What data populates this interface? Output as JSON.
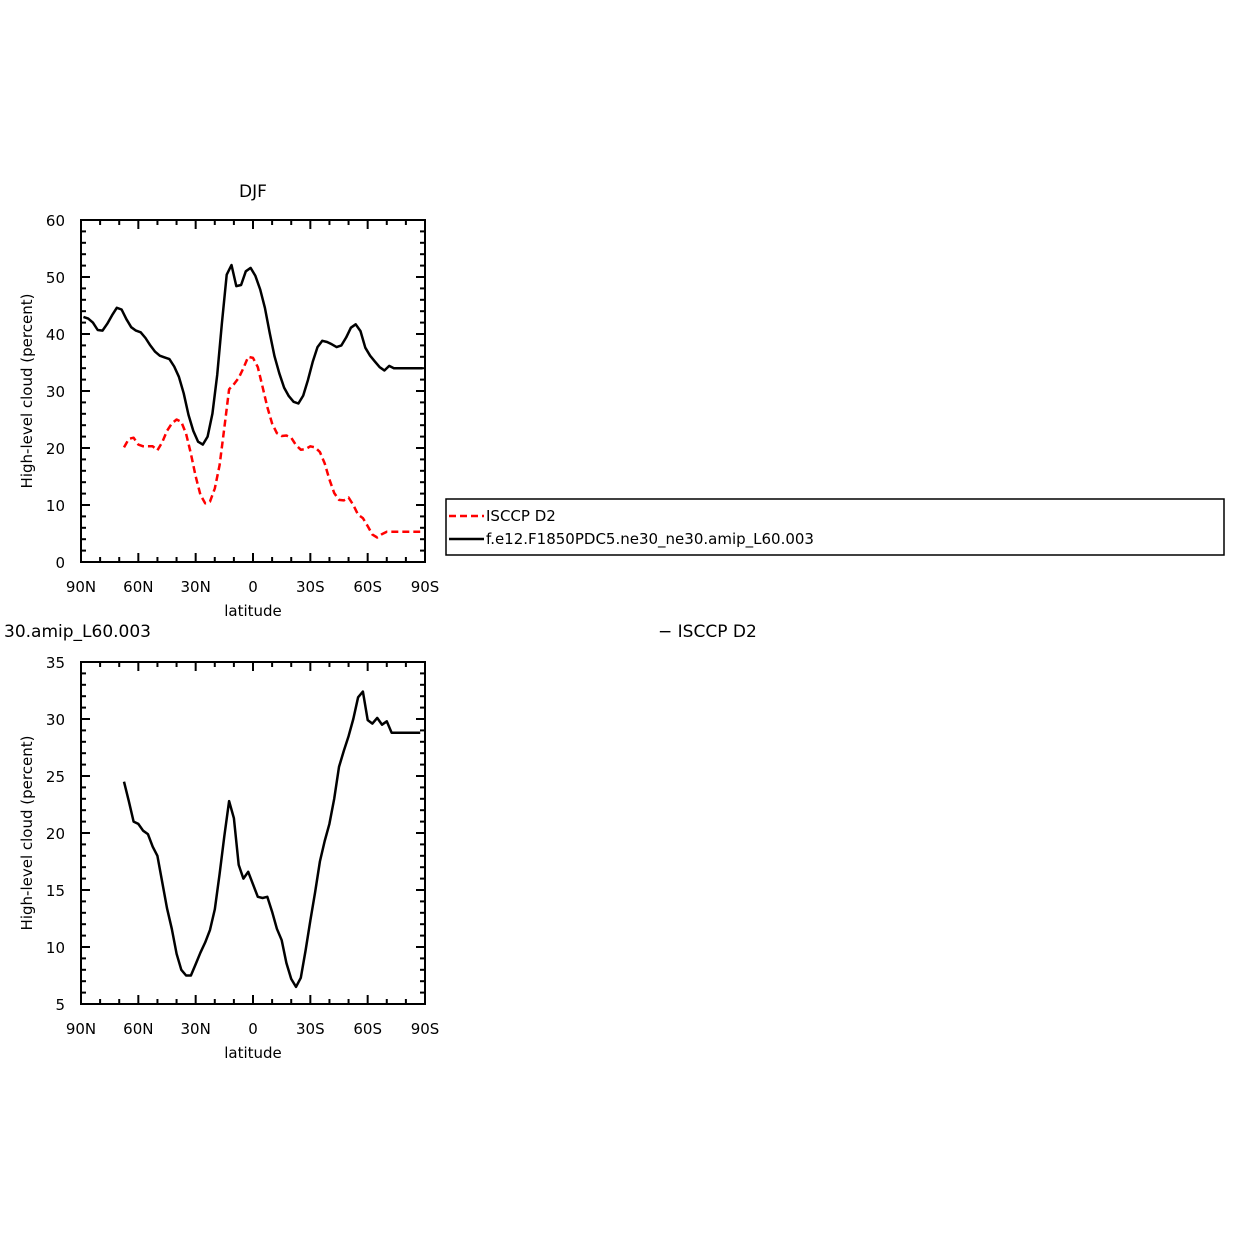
{
  "chart_data": [
    {
      "type": "line",
      "title": "DJF",
      "xlabel": "latitude",
      "ylabel": "High-level cloud (percent)",
      "xlim": [
        90,
        -90
      ],
      "ylim": [
        0,
        60
      ],
      "x_ticks": [
        90,
        60,
        30,
        0,
        -30,
        -60,
        -90
      ],
      "x_tick_labels": [
        "90N",
        "60N",
        "30N",
        "0",
        "30S",
        "60S",
        "90S"
      ],
      "y_ticks": [
        0,
        10,
        20,
        30,
        40,
        50,
        60
      ],
      "y_tick_labels": [
        "0",
        "10",
        "20",
        "30",
        "40",
        "50",
        "60"
      ],
      "grid": false,
      "legend_position": "right",
      "series": [
        {
          "name": "ISCCP D2",
          "color": "#ff0000",
          "dash": "dashed",
          "x": [
            67.5,
            65,
            62.5,
            60,
            57.5,
            55,
            52.5,
            50,
            47.5,
            45,
            42.5,
            40,
            37.5,
            35,
            32.5,
            30,
            27.5,
            25,
            22.5,
            20,
            17.5,
            15,
            12.5,
            10,
            7.5,
            5,
            2.5,
            0,
            -2.5,
            -5,
            -7.5,
            -10,
            -12.5,
            -15,
            -17.5,
            -20,
            -22.5,
            -25,
            -27.5,
            -30,
            -32.5,
            -35,
            -37.5,
            -40,
            -42.5,
            -45,
            -47.5,
            -50,
            -52.5,
            -55,
            -57.5,
            -60,
            -62.5,
            -65,
            -67.5,
            -70,
            -72.5,
            -75,
            -77.5,
            -80,
            -82.5,
            -85,
            -87.5
          ],
          "y": [
            20.1,
            21.6,
            21.8,
            20.6,
            20.3,
            20.3,
            20.3,
            19.6,
            21,
            23,
            24.3,
            25,
            24.6,
            22.5,
            19,
            15,
            11.8,
            10.3,
            10.6,
            12.9,
            17,
            23.5,
            30.3,
            31.2,
            32.3,
            34,
            36,
            35.8,
            34.2,
            30.7,
            27.2,
            24.3,
            22.6,
            22.1,
            22.2,
            21.8,
            20.5,
            19.7,
            19.8,
            20.3,
            20.1,
            19.3,
            17.3,
            14.5,
            12.1,
            10.9,
            10.8,
            11.3,
            10,
            8.3,
            7.7,
            6.3,
            4.8,
            4.3,
            4.9,
            5.3,
            5.3,
            5.3,
            5.3,
            5.3,
            5.3,
            5.3,
            5.3
          ]
        },
        {
          "name": "f.e12.F1850PDC5.ne30_ne30.amip_L60.003",
          "color": "#000000",
          "dash": "solid",
          "x": [
            88.75,
            86.25,
            83.75,
            81.25,
            78.75,
            76.25,
            73.75,
            71.25,
            68.75,
            66.25,
            63.75,
            61.25,
            58.75,
            56.25,
            53.75,
            51.25,
            48.75,
            46.25,
            43.75,
            41.25,
            38.75,
            36.25,
            33.75,
            31.25,
            28.75,
            26.25,
            23.75,
            21.25,
            18.75,
            16.25,
            13.75,
            11.25,
            8.75,
            6.25,
            3.75,
            1.25,
            -1.25,
            -3.75,
            -6.25,
            -8.75,
            -11.25,
            -13.75,
            -16.25,
            -18.75,
            -21.25,
            -23.75,
            -26.25,
            -28.75,
            -31.25,
            -33.75,
            -36.25,
            -38.75,
            -41.25,
            -43.75,
            -46.25,
            -48.75,
            -51.25,
            -53.75,
            -56.25,
            -58.75,
            -61.25,
            -63.75,
            -66.25,
            -68.75,
            -71.25,
            -73.75,
            -76.25,
            -78.75,
            -81.25,
            -83.75,
            -86.25,
            -88.75
          ],
          "y": [
            43,
            42.7,
            42,
            40.7,
            40.6,
            41.8,
            43.3,
            44.6,
            44.3,
            42.6,
            41.2,
            40.6,
            40.3,
            39.3,
            38,
            36.9,
            36.2,
            35.9,
            35.6,
            34.3,
            32.5,
            29.6,
            25.8,
            23,
            21.1,
            20.6,
            22,
            26,
            32.8,
            41.9,
            50.4,
            52.1,
            48.4,
            48.6,
            51,
            51.6,
            50.2,
            47.8,
            44.6,
            40.2,
            36.1,
            33.1,
            30.6,
            29.1,
            28.1,
            27.8,
            29.2,
            31.9,
            35.1,
            37.7,
            38.8,
            38.6,
            38.2,
            37.7,
            38,
            39.4,
            41.1,
            41.7,
            40.5,
            37.6,
            36.2,
            35.2,
            34.2,
            33.6,
            34.4,
            34,
            34,
            34,
            34,
            34,
            34,
            34
          ]
        }
      ]
    },
    {
      "type": "line",
      "title": "30.amip_L60.003",
      "title_right": "− ISCCP D2",
      "xlabel": "latitude",
      "ylabel": "High-level cloud (percent)",
      "xlim": [
        90,
        -90
      ],
      "ylim": [
        5,
        35
      ],
      "x_ticks": [
        90,
        60,
        30,
        0,
        -30,
        -60,
        -90
      ],
      "x_tick_labels": [
        "90N",
        "60N",
        "30N",
        "0",
        "30S",
        "60S",
        "90S"
      ],
      "y_ticks": [
        5,
        10,
        15,
        20,
        25,
        30,
        35
      ],
      "y_tick_labels": [
        "5",
        "10",
        "15",
        "20",
        "25",
        "30",
        "35"
      ],
      "grid": false,
      "series": [
        {
          "color": "#000000",
          "dash": "solid",
          "x": [
            67.5,
            65,
            62.5,
            60,
            57.5,
            55,
            52.5,
            50,
            47.5,
            45,
            42.5,
            40,
            37.5,
            35,
            32.5,
            30,
            27.5,
            25,
            22.5,
            20,
            17.5,
            15,
            12.5,
            10,
            7.5,
            5,
            2.5,
            0,
            -2.5,
            -5,
            -7.5,
            -10,
            -12.5,
            -15,
            -17.5,
            -20,
            -22.5,
            -25,
            -27.5,
            -30,
            -32.5,
            -35,
            -37.5,
            -40,
            -42.5,
            -45,
            -47.5,
            -50,
            -52.5,
            -55,
            -57.5,
            -60,
            -62.5,
            -65,
            -67.5,
            -70,
            -72.5,
            -75,
            -77.5,
            -80,
            -82.5,
            -85,
            -87.5
          ],
          "y": [
            24.5,
            22.8,
            21,
            20.8,
            20.2,
            19.9,
            18.8,
            18,
            15.7,
            13.4,
            11.6,
            9.4,
            8,
            7.5,
            7.5,
            8.5,
            9.5,
            10.4,
            11.5,
            13.3,
            16.4,
            19.7,
            22.8,
            21.3,
            17.2,
            16,
            16.6,
            15.5,
            14.4,
            14.3,
            14.4,
            13.1,
            11.6,
            10.6,
            8.6,
            7.2,
            6.5,
            7.3,
            9.7,
            12.3,
            14.8,
            17.5,
            19.3,
            20.8,
            23,
            25.8,
            27.2,
            28.5,
            30,
            31.9,
            32.4,
            29.9,
            29.6,
            30.1,
            29.5,
            29.8,
            28.8,
            28.8,
            28.8,
            28.8,
            28.8,
            28.8,
            28.8
          ]
        }
      ]
    }
  ]
}
